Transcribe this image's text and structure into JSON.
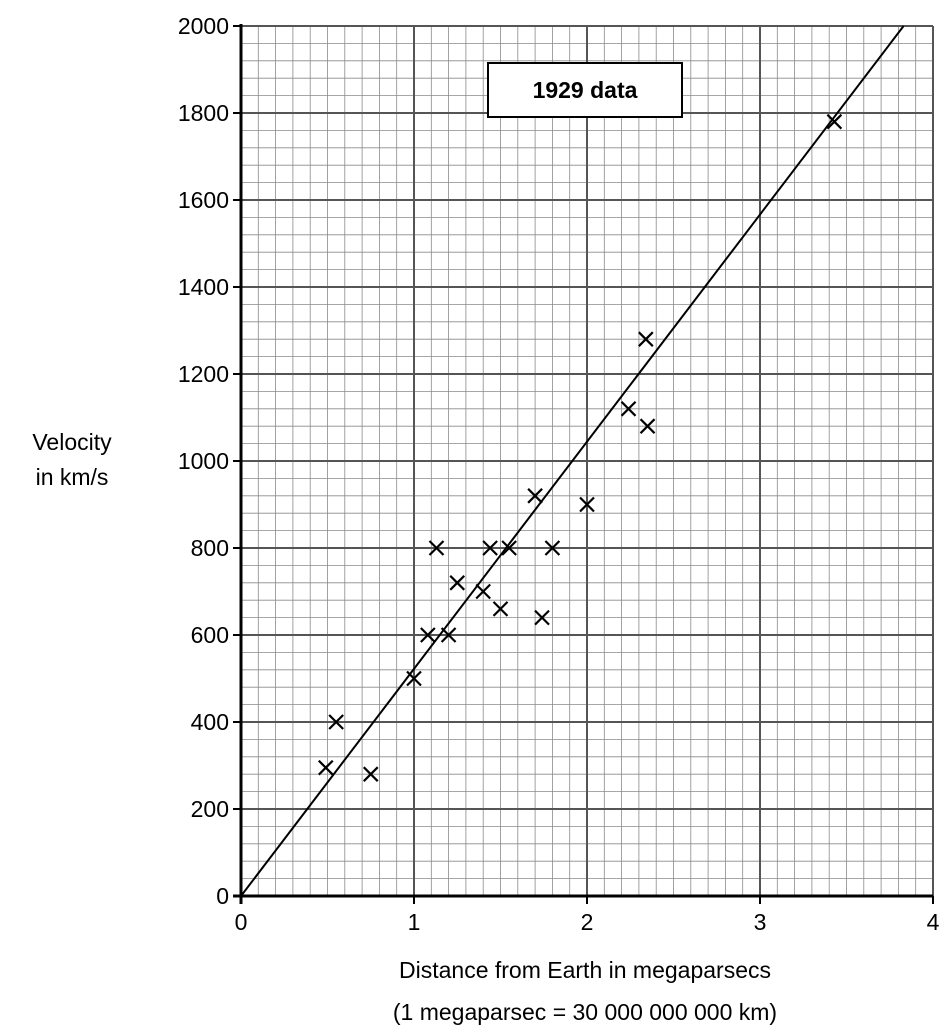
{
  "chart_data": {
    "type": "scatter",
    "title": "1929 data",
    "xlabel": "Distance from Earth in megaparsecs",
    "xlabel_note": "(1 megaparsec = 30 000 000 000 km)",
    "ylabel_line1": "Velocity",
    "ylabel_line2": "in km/s",
    "xlim": [
      0,
      4
    ],
    "ylim": [
      0,
      2000
    ],
    "x_ticks": [
      0,
      1,
      2,
      3,
      4
    ],
    "y_ticks": [
      0,
      200,
      400,
      600,
      800,
      1000,
      1200,
      1400,
      1600,
      1800,
      2000
    ],
    "grid": true,
    "minor_grid_x_step": 0.1,
    "minor_grid_y_step": 40,
    "major_grid_x_step": 1,
    "major_grid_y_step": 200,
    "marker": "x",
    "points": [
      {
        "x": 0.49,
        "y": 295
      },
      {
        "x": 0.55,
        "y": 400
      },
      {
        "x": 0.75,
        "y": 280
      },
      {
        "x": 1.0,
        "y": 500
      },
      {
        "x": 1.08,
        "y": 600
      },
      {
        "x": 1.13,
        "y": 800
      },
      {
        "x": 1.2,
        "y": 600
      },
      {
        "x": 1.25,
        "y": 720
      },
      {
        "x": 1.4,
        "y": 700
      },
      {
        "x": 1.44,
        "y": 800
      },
      {
        "x": 1.5,
        "y": 660
      },
      {
        "x": 1.55,
        "y": 800
      },
      {
        "x": 1.7,
        "y": 920
      },
      {
        "x": 1.74,
        "y": 640
      },
      {
        "x": 1.8,
        "y": 800
      },
      {
        "x": 2.0,
        "y": 900
      },
      {
        "x": 2.24,
        "y": 1120
      },
      {
        "x": 2.34,
        "y": 1280
      },
      {
        "x": 2.35,
        "y": 1080
      },
      {
        "x": 3.43,
        "y": 1780
      }
    ],
    "best_fit_line": {
      "x": [
        0,
        3.83
      ],
      "y": [
        0,
        2000
      ]
    }
  }
}
